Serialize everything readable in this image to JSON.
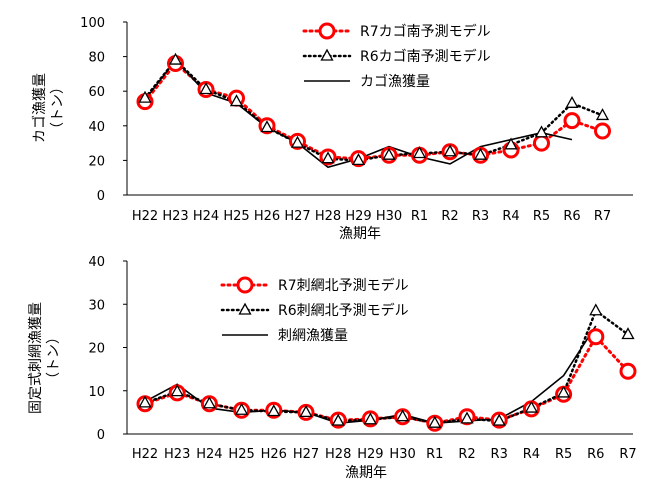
{
  "chart_data": [
    {
      "type": "line",
      "xlabel": "漁期年",
      "ylabel_main": "カゴ漁獲量",
      "ylabel_unit": "（トン）",
      "ylim": [
        0,
        100
      ],
      "yticks": [
        0,
        20,
        40,
        60,
        80,
        100
      ],
      "categories": [
        "H22",
        "H23",
        "H24",
        "H25",
        "H26",
        "H27",
        "H28",
        "H29",
        "H30",
        "R1",
        "R2",
        "R3",
        "R4",
        "R5",
        "R6",
        "R7"
      ],
      "series": [
        {
          "name": "R7カゴ南予測モデル",
          "style": "red-circles-dotted",
          "color": "#ff0000",
          "values": [
            54,
            76,
            61,
            56,
            40,
            31,
            22,
            21,
            23,
            23,
            25,
            23,
            26,
            30,
            43,
            37
          ]
        },
        {
          "name": "R6カゴ南予測モデル",
          "style": "black-triangles-dotted",
          "color": "#000000",
          "values": [
            56,
            78,
            61,
            54,
            39,
            30,
            21,
            20,
            23,
            24,
            25,
            23,
            29,
            36,
            53,
            46
          ]
        },
        {
          "name": "カゴ漁獲量",
          "style": "black-line",
          "color": "#000000",
          "values": [
            55,
            78,
            59,
            53,
            39,
            30,
            16,
            21,
            28,
            22,
            18,
            28,
            32,
            36,
            32,
            null
          ]
        }
      ]
    },
    {
      "type": "line",
      "xlabel": "漁期年",
      "ylabel_main": "固定式刺網漁獲量",
      "ylabel_unit": "（トン）",
      "ylim": [
        0,
        40
      ],
      "yticks": [
        0,
        10,
        20,
        30,
        40
      ],
      "categories": [
        "H22",
        "H23",
        "H24",
        "H25",
        "H26",
        "H27",
        "H28",
        "H29",
        "H30",
        "R1",
        "R2",
        "R3",
        "R4",
        "R5",
        "R6",
        "R7"
      ],
      "series": [
        {
          "name": "R7刺網北予測モデル",
          "style": "red-circles-dotted",
          "color": "#ff0000",
          "values": [
            7.0,
            9.5,
            7.0,
            5.5,
            5.5,
            5.0,
            3.2,
            3.5,
            4.0,
            2.5,
            4.0,
            3.2,
            5.8,
            9.2,
            22.5,
            14.5
          ]
        },
        {
          "name": "R6刺網北予測モデル",
          "style": "black-triangles-dotted",
          "color": "#000000",
          "values": [
            7.2,
            9.8,
            7.0,
            5.5,
            5.2,
            5.0,
            3.0,
            3.3,
            4.0,
            2.5,
            3.5,
            3.0,
            6.0,
            9.5,
            28.5,
            23.0
          ]
        },
        {
          "name": "刺網漁獲量",
          "style": "black-line",
          "color": "#000000",
          "values": [
            7.5,
            11.5,
            6.0,
            5.0,
            5.5,
            5.0,
            2.5,
            3.2,
            4.5,
            2.5,
            3.0,
            3.5,
            7.5,
            13.5,
            25.0,
            null
          ]
        }
      ]
    }
  ]
}
